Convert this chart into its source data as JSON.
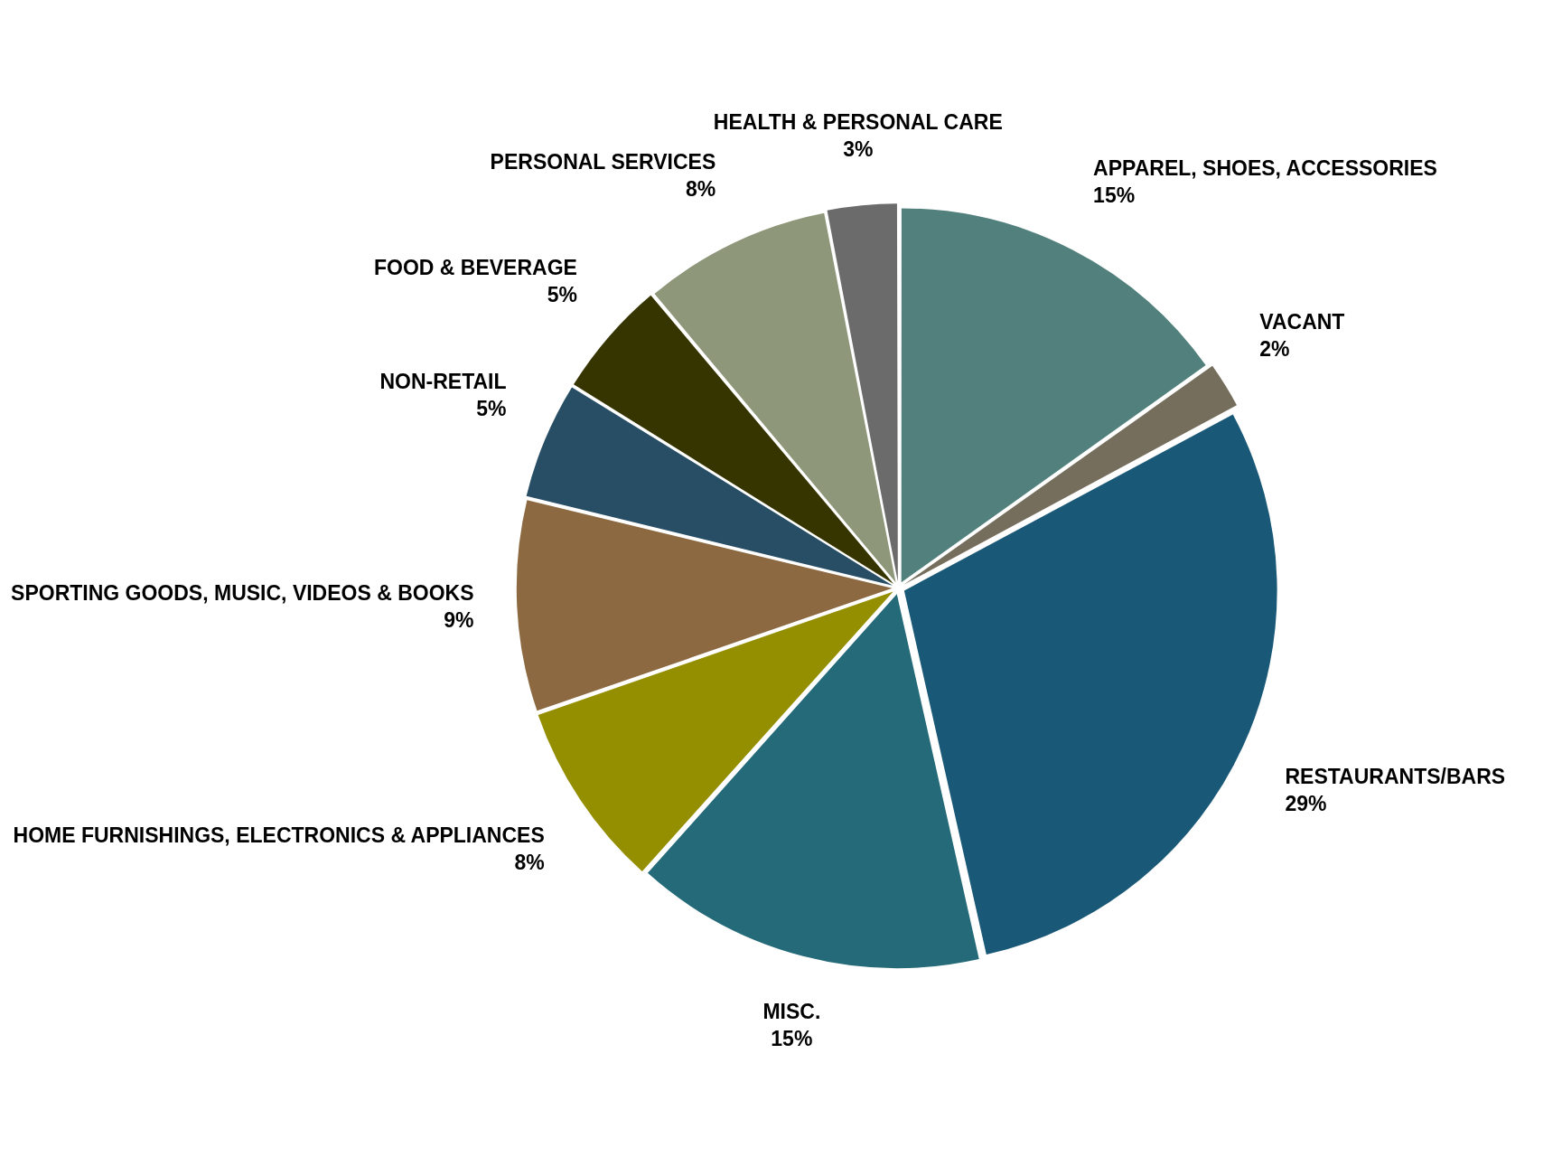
{
  "chart_data": {
    "type": "pie",
    "categories": [
      "APPAREL, SHOES, ACCESSORIES",
      "VACANT",
      "RESTAURANTS/BARS",
      "MISC.",
      "HOME FURNISHINGS, ELECTRONICS & APPLIANCES",
      "SPORTING GOODS, MUSIC, VIDEOS & BOOKS",
      "NON-RETAIL",
      "FOOD & BEVERAGE",
      "PERSONAL SERVICES",
      "HEALTH & PERSONAL CARE"
    ],
    "values": [
      15,
      2,
      29,
      15,
      8,
      9,
      5,
      5,
      8,
      3
    ],
    "value_labels": [
      "15%",
      "2%",
      "29%",
      "15%",
      "8%",
      "9%",
      "5%",
      "5%",
      "8%",
      "3%"
    ],
    "colors": [
      "#52807c",
      "#756e5c",
      "#1a5877",
      "#246a78",
      "#948f00",
      "#8c6940",
      "#284e66",
      "#363500",
      "#8e977a",
      "#6b6b6b"
    ],
    "legend": false
  }
}
